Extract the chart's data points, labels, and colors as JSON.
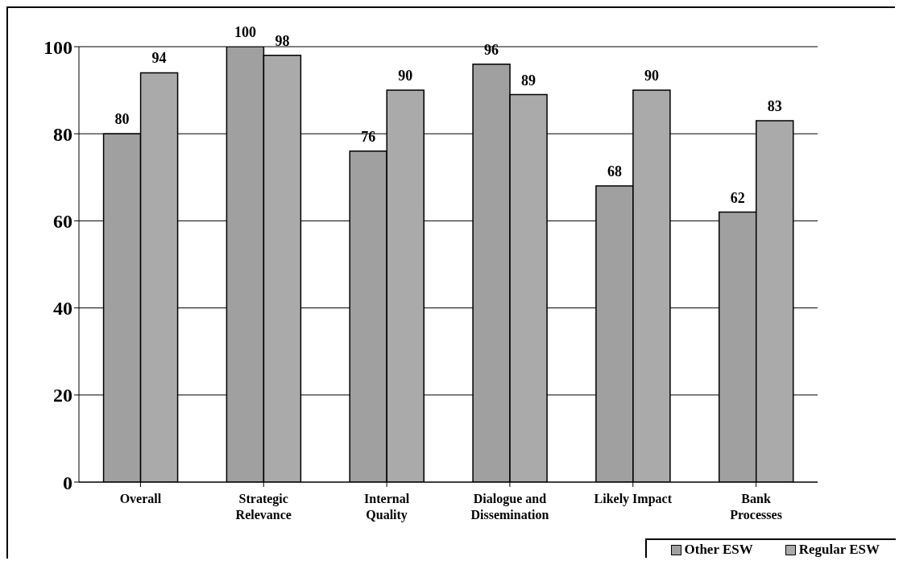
{
  "chart_data": {
    "type": "bar",
    "categories": [
      "Overall",
      "Strategic Relevance",
      "Internal Quality",
      "Dialogue and Dissemination",
      "Likely Impact",
      "Bank Processes"
    ],
    "series": [
      {
        "name": "Other ESW",
        "color": "#a0a0a0",
        "values": [
          80,
          100,
          76,
          96,
          68,
          62
        ]
      },
      {
        "name": "Regular ESW",
        "color": "#aaaaaa",
        "values": [
          94,
          98,
          90,
          89,
          90,
          83
        ]
      }
    ],
    "ylim": [
      0,
      100
    ],
    "yticks": [
      0,
      20,
      40,
      60,
      80,
      100
    ],
    "grid": "y",
    "legend": "bottom right",
    "data_labels": true
  }
}
